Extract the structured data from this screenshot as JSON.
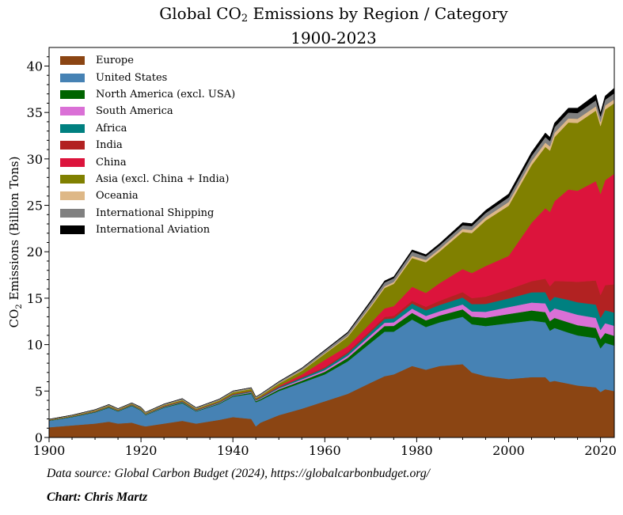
{
  "chart_data": {
    "type": "area",
    "stacked": true,
    "title": "Global CO2 Emissions by Region / Category",
    "title_parts": {
      "prefix": "Global CO",
      "subscript": "2",
      "suffix": " Emissions by Region / Category"
    },
    "subtitle": "1900-2023",
    "xlabel": "",
    "ylabel": "CO2 Emissions (Billion Tons)",
    "ylabel_parts": {
      "prefix": "CO",
      "subscript": "2",
      "suffix": " Emissions (Billion Tons)"
    },
    "xlim": [
      1900,
      2023
    ],
    "ylim": [
      0,
      42
    ],
    "xticks": [
      1900,
      1920,
      1940,
      1960,
      1980,
      2000,
      2020
    ],
    "yticks": [
      0,
      5,
      10,
      15,
      20,
      25,
      30,
      35,
      40
    ],
    "grid": false,
    "legend_position": "top-left",
    "x": [
      1900,
      1905,
      1910,
      1913,
      1915,
      1918,
      1920,
      1921,
      1925,
      1929,
      1932,
      1937,
      1940,
      1944,
      1945,
      1946,
      1950,
      1955,
      1960,
      1965,
      1970,
      1973,
      1975,
      1979,
      1982,
      1985,
      1990,
      1992,
      1995,
      2000,
      2005,
      2008,
      2009,
      2010,
      2013,
      2015,
      2019,
      2020,
      2021,
      2023
    ],
    "series": [
      {
        "name": "Europe",
        "color": "#8B4513",
        "values": [
          1.1,
          1.3,
          1.5,
          1.7,
          1.5,
          1.6,
          1.3,
          1.2,
          1.5,
          1.8,
          1.5,
          1.9,
          2.2,
          2.0,
          1.2,
          1.6,
          2.4,
          3.1,
          3.9,
          4.7,
          5.9,
          6.6,
          6.8,
          7.7,
          7.3,
          7.7,
          7.9,
          7.0,
          6.6,
          6.3,
          6.5,
          6.5,
          6.0,
          6.1,
          5.8,
          5.6,
          5.4,
          4.9,
          5.2,
          5.0
        ]
      },
      {
        "name": "United States",
        "color": "#4682B4",
        "values": [
          0.7,
          0.9,
          1.2,
          1.5,
          1.3,
          1.8,
          1.6,
          1.2,
          1.7,
          1.9,
          1.3,
          1.7,
          2.2,
          2.7,
          2.6,
          2.4,
          2.6,
          2.8,
          2.9,
          3.5,
          4.3,
          4.8,
          4.6,
          5.0,
          4.6,
          4.7,
          5.1,
          5.2,
          5.4,
          6.0,
          6.1,
          5.9,
          5.5,
          5.7,
          5.5,
          5.4,
          5.3,
          4.7,
          5.0,
          4.9
        ]
      },
      {
        "name": "North America (excl. USA)",
        "color": "#006400",
        "values": [
          0.03,
          0.04,
          0.05,
          0.06,
          0.05,
          0.06,
          0.06,
          0.05,
          0.06,
          0.08,
          0.06,
          0.08,
          0.09,
          0.12,
          0.12,
          0.13,
          0.18,
          0.22,
          0.28,
          0.38,
          0.52,
          0.6,
          0.62,
          0.72,
          0.72,
          0.74,
          0.8,
          0.82,
          0.9,
          1.0,
          1.08,
          1.1,
          1.04,
          1.08,
          1.1,
          1.1,
          1.1,
          1.0,
          1.05,
          1.05
        ]
      },
      {
        "name": "South America",
        "color": "#DA70D6",
        "values": [
          0.01,
          0.01,
          0.02,
          0.02,
          0.02,
          0.02,
          0.03,
          0.03,
          0.03,
          0.04,
          0.04,
          0.05,
          0.05,
          0.06,
          0.06,
          0.07,
          0.1,
          0.14,
          0.18,
          0.23,
          0.3,
          0.35,
          0.38,
          0.46,
          0.47,
          0.46,
          0.53,
          0.56,
          0.64,
          0.75,
          0.85,
          0.95,
          0.95,
          1.02,
          1.1,
          1.12,
          1.08,
          0.98,
          1.06,
          1.08
        ]
      },
      {
        "name": "Africa",
        "color": "#008080",
        "values": [
          0.01,
          0.02,
          0.02,
          0.03,
          0.03,
          0.03,
          0.03,
          0.03,
          0.04,
          0.05,
          0.04,
          0.06,
          0.07,
          0.08,
          0.08,
          0.09,
          0.12,
          0.16,
          0.2,
          0.26,
          0.35,
          0.4,
          0.44,
          0.55,
          0.62,
          0.68,
          0.75,
          0.78,
          0.85,
          0.93,
          1.1,
          1.2,
          1.2,
          1.25,
          1.32,
          1.35,
          1.43,
          1.32,
          1.4,
          1.42
        ]
      },
      {
        "name": "India",
        "color": "#B22222",
        "values": [
          0.01,
          0.01,
          0.02,
          0.02,
          0.02,
          0.02,
          0.02,
          0.02,
          0.03,
          0.03,
          0.03,
          0.03,
          0.04,
          0.04,
          0.04,
          0.04,
          0.07,
          0.09,
          0.12,
          0.17,
          0.2,
          0.23,
          0.26,
          0.3,
          0.36,
          0.45,
          0.58,
          0.65,
          0.78,
          0.98,
          1.2,
          1.45,
          1.6,
          1.7,
          2.0,
          2.2,
          2.6,
          2.45,
          2.7,
          3.05
        ]
      },
      {
        "name": "China",
        "color": "#DC143C",
        "values": [
          0.0,
          0.0,
          0.01,
          0.01,
          0.01,
          0.01,
          0.01,
          0.01,
          0.02,
          0.02,
          0.02,
          0.02,
          0.03,
          0.03,
          0.03,
          0.03,
          0.08,
          0.27,
          0.78,
          0.6,
          0.77,
          0.92,
          1.05,
          1.5,
          1.5,
          1.9,
          2.48,
          2.7,
          3.3,
          3.6,
          6.3,
          7.6,
          8.0,
          8.6,
          9.9,
          9.8,
          10.7,
          10.9,
          11.3,
          11.9
        ]
      },
      {
        "name": "Asia (excl. China + India)",
        "color": "#808000",
        "values": [
          0.05,
          0.06,
          0.08,
          0.09,
          0.08,
          0.09,
          0.09,
          0.08,
          0.1,
          0.12,
          0.1,
          0.14,
          0.18,
          0.2,
          0.12,
          0.15,
          0.25,
          0.4,
          0.65,
          1.0,
          1.7,
          2.2,
          2.4,
          3.1,
          3.3,
          3.4,
          4.0,
          4.3,
          4.9,
          5.4,
          6.2,
          6.6,
          6.6,
          6.9,
          7.2,
          7.3,
          7.6,
          7.3,
          7.6,
          7.6
        ]
      },
      {
        "name": "Oceania",
        "color": "#DEB887",
        "values": [
          0.01,
          0.01,
          0.02,
          0.02,
          0.02,
          0.02,
          0.02,
          0.02,
          0.02,
          0.03,
          0.03,
          0.03,
          0.03,
          0.04,
          0.04,
          0.04,
          0.05,
          0.07,
          0.09,
          0.11,
          0.16,
          0.18,
          0.2,
          0.23,
          0.25,
          0.27,
          0.32,
          0.33,
          0.35,
          0.4,
          0.44,
          0.46,
          0.46,
          0.46,
          0.45,
          0.45,
          0.46,
          0.44,
          0.44,
          0.43
        ]
      },
      {
        "name": "International Shipping",
        "color": "#808080",
        "values": [
          0.05,
          0.06,
          0.08,
          0.1,
          0.08,
          0.08,
          0.1,
          0.09,
          0.1,
          0.12,
          0.1,
          0.12,
          0.12,
          0.1,
          0.1,
          0.12,
          0.15,
          0.2,
          0.25,
          0.3,
          0.38,
          0.42,
          0.4,
          0.45,
          0.38,
          0.38,
          0.4,
          0.42,
          0.45,
          0.5,
          0.55,
          0.6,
          0.57,
          0.6,
          0.62,
          0.63,
          0.65,
          0.6,
          0.62,
          0.65
        ]
      },
      {
        "name": "International Aviation",
        "color": "#000000",
        "values": [
          0,
          0,
          0,
          0,
          0,
          0,
          0,
          0,
          0,
          0,
          0,
          0,
          0,
          0,
          0,
          0.01,
          0.02,
          0.04,
          0.07,
          0.1,
          0.15,
          0.17,
          0.17,
          0.2,
          0.2,
          0.22,
          0.28,
          0.28,
          0.3,
          0.36,
          0.4,
          0.44,
          0.42,
          0.45,
          0.48,
          0.52,
          0.62,
          0.36,
          0.4,
          0.55
        ]
      }
    ]
  },
  "footer": {
    "source": "Data source: Global Carbon Budget (2024), https://globalcarbonbudget.org/",
    "credit": "Chart: Chris Martz"
  }
}
